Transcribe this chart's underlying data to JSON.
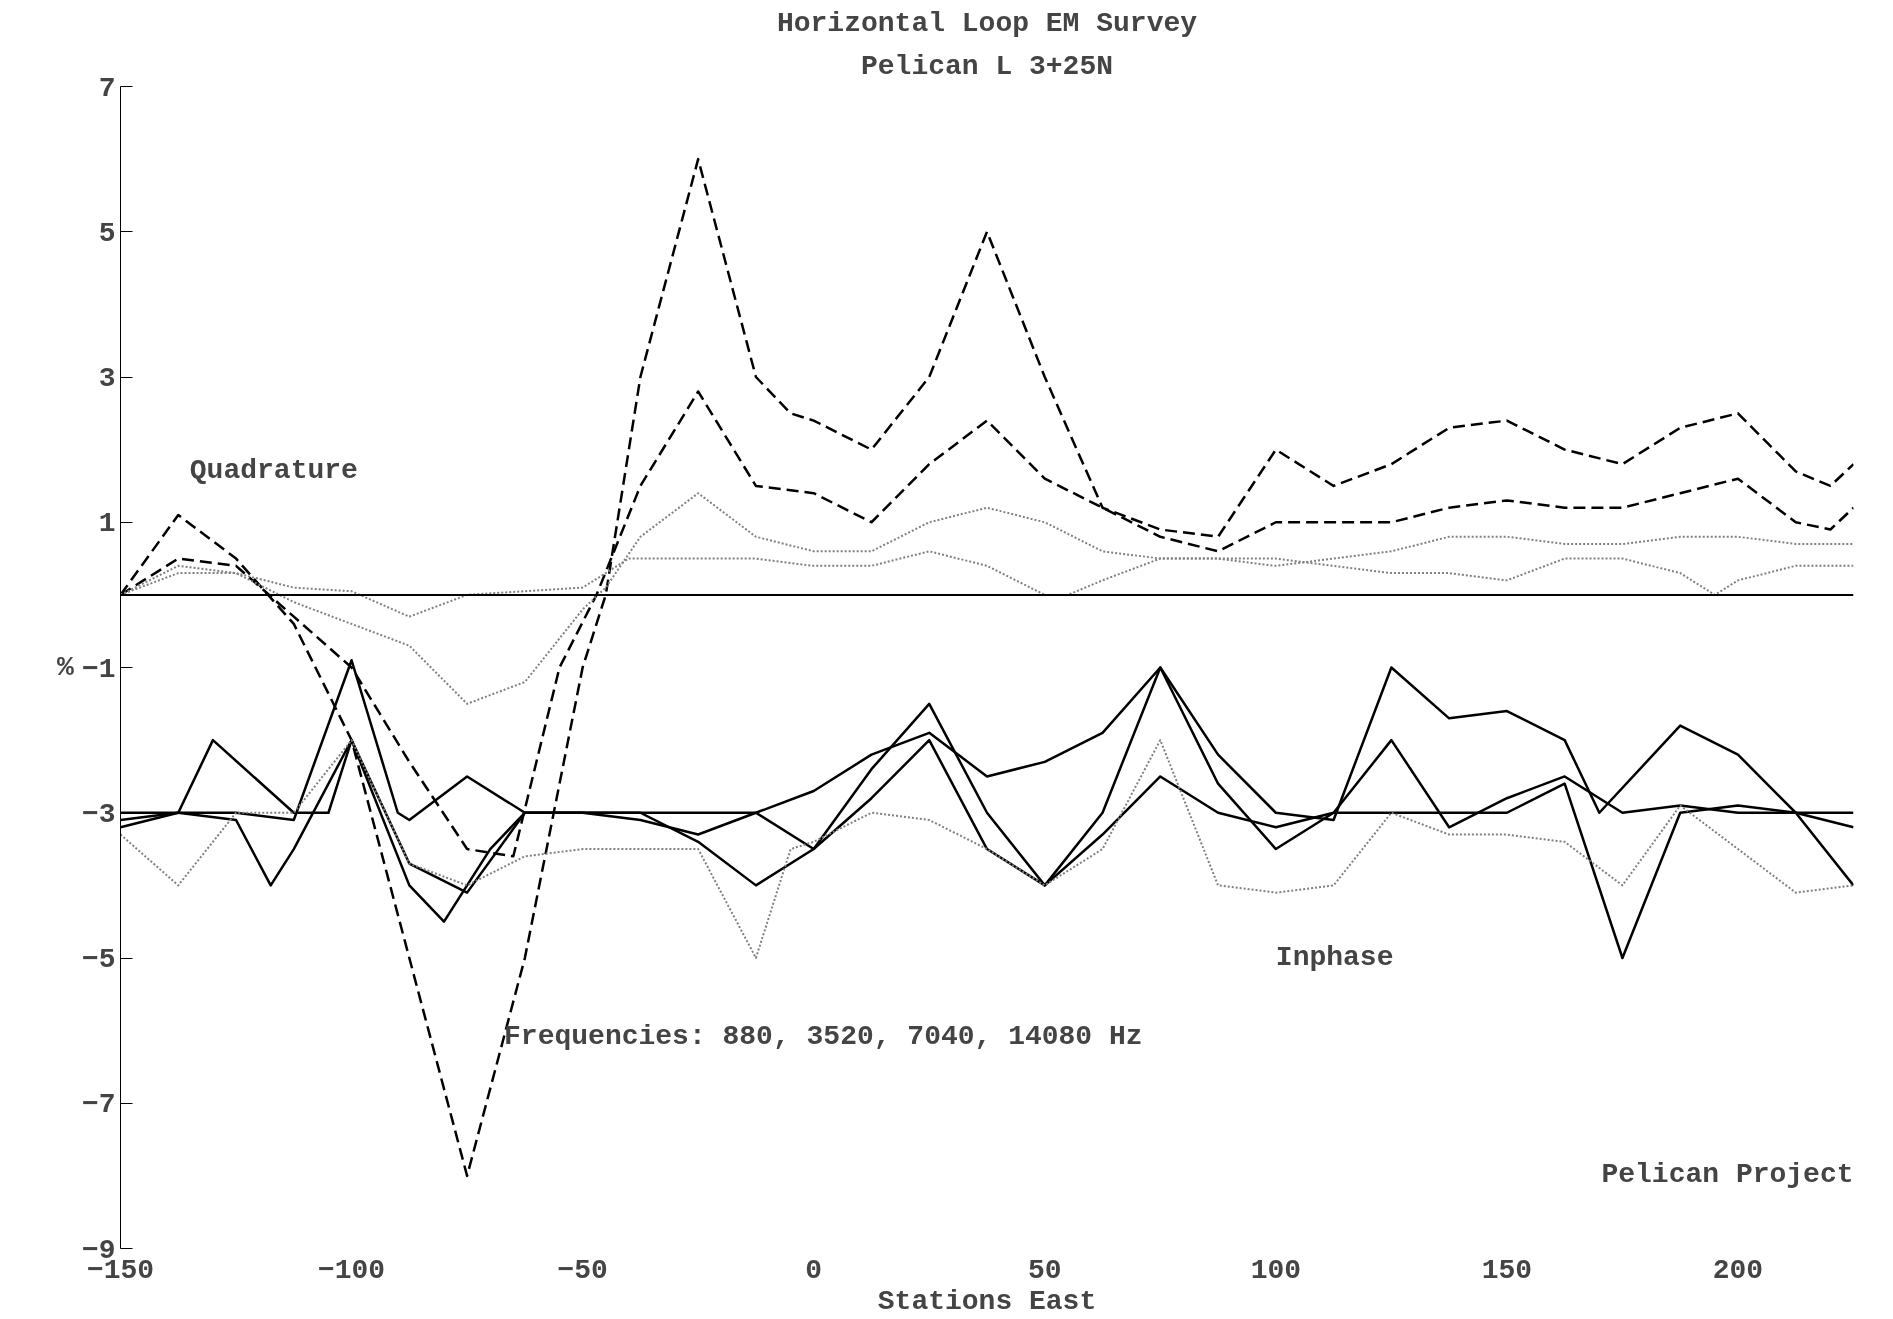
{
  "chart_data": {
    "type": "line",
    "title": "Horizontal Loop EM Survey",
    "subtitle": "Pelican L 3+25N",
    "xlabel": "Stations East",
    "ylabel": "%",
    "xlim": [
      -150,
      225
    ],
    "xticks": [
      -150,
      -100,
      -50,
      0,
      50,
      100,
      150,
      200
    ],
    "ylim": [
      -9,
      7
    ],
    "yticks": [
      -9,
      -7,
      -5,
      -3,
      -1,
      1,
      3,
      5,
      7
    ],
    "grid": false,
    "ref_lines": [
      {
        "axis": "y",
        "value": 0,
        "color": "#000000"
      }
    ],
    "annotations": [
      "Quadrature",
      "Inphase",
      "Frequencies: 880, 3520, 7040, 14080 Hz",
      "Pelican Project"
    ],
    "series": [
      {
        "color": "#000000",
        "line_style": "dashed",
        "x": [
          -150,
          -137.5,
          -125,
          -112.5,
          -100,
          -87.5,
          -75,
          -62.5,
          -50,
          -45,
          -37.5,
          -25,
          -12.5,
          -5,
          0,
          12.5,
          25,
          37.5,
          50,
          62.5,
          75,
          87.5,
          100,
          112.5,
          125,
          137.5,
          150,
          162.5,
          175,
          187.5,
          200,
          212.5,
          220,
          225
        ],
        "values": [
          0,
          1.1,
          0.5,
          -0.4,
          -2,
          -5,
          -8,
          -5,
          -1,
          0,
          3,
          6,
          3,
          2.5,
          2.4,
          2,
          3,
          5,
          3,
          1.2,
          0.9,
          0.8,
          2,
          1.5,
          1.8,
          2.3,
          2.4,
          2,
          1.8,
          2.3,
          2.5,
          1.7,
          1.5,
          1.8
        ]
      },
      {
        "color": "#000000",
        "line_style": "dashed",
        "x": [
          -150,
          -137.5,
          -125,
          -112.5,
          -100,
          -87.5,
          -75,
          -65,
          -55,
          -47,
          -37.5,
          -25,
          -12.5,
          0,
          12.5,
          25,
          37.5,
          50,
          62.5,
          75,
          87.5,
          100,
          112.5,
          125,
          137.5,
          150,
          162.5,
          175,
          187.5,
          200,
          212.5,
          220,
          225
        ],
        "values": [
          0,
          0.5,
          0.4,
          -0.3,
          -1,
          -2.3,
          -3.5,
          -3.6,
          -1,
          0,
          1.5,
          2.8,
          1.5,
          1.4,
          1,
          1.8,
          2.4,
          1.6,
          1.2,
          0.8,
          0.6,
          1,
          1,
          1,
          1.2,
          1.3,
          1.2,
          1.2,
          1.4,
          1.6,
          1,
          0.9,
          1.2
        ]
      },
      {
        "color": "#808080",
        "line_style": "dotted",
        "x": [
          -150,
          -137.5,
          -125,
          -112.5,
          -100,
          -87.5,
          -75,
          -62.5,
          -50,
          -45,
          -37.5,
          -25,
          -12.5,
          0,
          12.5,
          25,
          37.5,
          50,
          62.5,
          75,
          87.5,
          100,
          112.5,
          125,
          137.5,
          150,
          162.5,
          175,
          187.5,
          200,
          212.5,
          225
        ],
        "values": [
          0,
          0.4,
          0.3,
          -0.1,
          -0.4,
          -0.7,
          -1.5,
          -1.2,
          -0.2,
          0.1,
          0.8,
          1.4,
          0.8,
          0.6,
          0.6,
          1,
          1.2,
          1,
          0.6,
          0.5,
          0.5,
          0.4,
          0.5,
          0.6,
          0.8,
          0.8,
          0.7,
          0.7,
          0.8,
          0.8,
          0.7,
          0.7
        ]
      },
      {
        "color": "#808080",
        "line_style": "dotted",
        "x": [
          -150,
          -137.5,
          -125,
          -112.5,
          -100,
          -87.5,
          -75,
          -62.5,
          -50,
          -40,
          -25,
          -12.5,
          0,
          12.5,
          25,
          37.5,
          50,
          55,
          62.5,
          75,
          87.5,
          100,
          112.5,
          125,
          137.5,
          150,
          162.5,
          175,
          187.5,
          195,
          200,
          212.5,
          225
        ],
        "values": [
          0,
          0.3,
          0.3,
          0.1,
          0.05,
          -0.3,
          0,
          0.05,
          0.1,
          0.5,
          0.5,
          0.5,
          0.4,
          0.4,
          0.6,
          0.4,
          0,
          0,
          0.2,
          0.5,
          0.5,
          0.5,
          0.4,
          0.3,
          0.3,
          0.2,
          0.5,
          0.5,
          0.3,
          0,
          0.2,
          0.4,
          0.4
        ]
      },
      {
        "color": "#000000",
        "line_style": "solid",
        "x": [
          -150,
          -137.5,
          -125,
          -112.5,
          -100,
          -90,
          -87.5,
          -75,
          -62.5,
          -50,
          -37.5,
          -25,
          -12.5,
          0,
          12.5,
          25,
          37.5,
          50,
          62.5,
          75,
          87.5,
          100,
          112.5,
          125,
          137.5,
          150,
          162.5,
          170,
          187.5,
          200,
          212.5,
          225
        ],
        "values": [
          -3.1,
          -3,
          -3,
          -3.1,
          -0.9,
          -3,
          -3.1,
          -2.5,
          -3,
          -3,
          -3,
          -3.4,
          -4,
          -3.5,
          -2.4,
          -1.5,
          -3,
          -4,
          -3,
          -1,
          -2.2,
          -3,
          -3.1,
          -1,
          -1.7,
          -1.6,
          -2,
          -3,
          -1.8,
          -2.2,
          -3,
          -4
        ]
      },
      {
        "color": "#000000",
        "line_style": "solid",
        "x": [
          -150,
          -137.5,
          -130,
          -112.5,
          -105,
          -100,
          -87.5,
          -75,
          -62.5,
          -50,
          -25,
          -12.5,
          0,
          12.5,
          25,
          37.5,
          50,
          62.5,
          75,
          87.5,
          100,
          112.5,
          125,
          137.5,
          150,
          162.5,
          175,
          187.5,
          200,
          212.5,
          225
        ],
        "values": [
          -3.2,
          -3,
          -2,
          -3,
          -3,
          -2,
          -3.7,
          -4.1,
          -3,
          -3,
          -3,
          -3,
          -2.7,
          -2.2,
          -1.9,
          -2.5,
          -2.3,
          -1.9,
          -1,
          -2.6,
          -3.5,
          -3,
          -2,
          -3.2,
          -2.8,
          -2.5,
          -3,
          -2.9,
          -3,
          -3,
          -3.2
        ]
      },
      {
        "color": "#000000",
        "line_style": "solid",
        "x": [
          -150,
          -137.5,
          -125,
          -117.5,
          -112.5,
          -100,
          -87.5,
          -80,
          -70,
          -62.5,
          -50,
          -37.5,
          -25,
          -12.5,
          0,
          12.5,
          25,
          37.5,
          50,
          62.5,
          75,
          87.5,
          100,
          112.5,
          125,
          137.5,
          150,
          162.5,
          175,
          187.5,
          200,
          212.5,
          225
        ],
        "values": [
          -3,
          -3,
          -3.1,
          -4,
          -3.5,
          -2,
          -4,
          -4.5,
          -3.5,
          -3,
          -3,
          -3.1,
          -3.3,
          -3,
          -3.5,
          -2.8,
          -2,
          -3.5,
          -4,
          -3.3,
          -2.5,
          -3,
          -3.2,
          -3,
          -3,
          -3,
          -3,
          -2.6,
          -5,
          -3,
          -2.9,
          -3,
          -3
        ]
      },
      {
        "color": "#808080",
        "line_style": "dotted",
        "x": [
          -150,
          -137.5,
          -125,
          -112.5,
          -100,
          -87.5,
          -75,
          -62.5,
          -50,
          -37.5,
          -25,
          -12.5,
          -5,
          0,
          12.5,
          25,
          37.5,
          50,
          62.5,
          75,
          87.5,
          100,
          112.5,
          125,
          137.5,
          150,
          162.5,
          175,
          187.5,
          200,
          212.5,
          225
        ],
        "values": [
          -3.3,
          -4,
          -3,
          -3,
          -2,
          -3.7,
          -4,
          -3.6,
          -3.5,
          -3.5,
          -3.5,
          -5,
          -3.5,
          -3.4,
          -3,
          -3.1,
          -3.5,
          -4,
          -3.5,
          -2,
          -4,
          -4.1,
          -4,
          -3,
          -3.3,
          -3.3,
          -3.4,
          -4,
          -2.9,
          -3.5,
          -4.1,
          -4
        ]
      }
    ]
  }
}
